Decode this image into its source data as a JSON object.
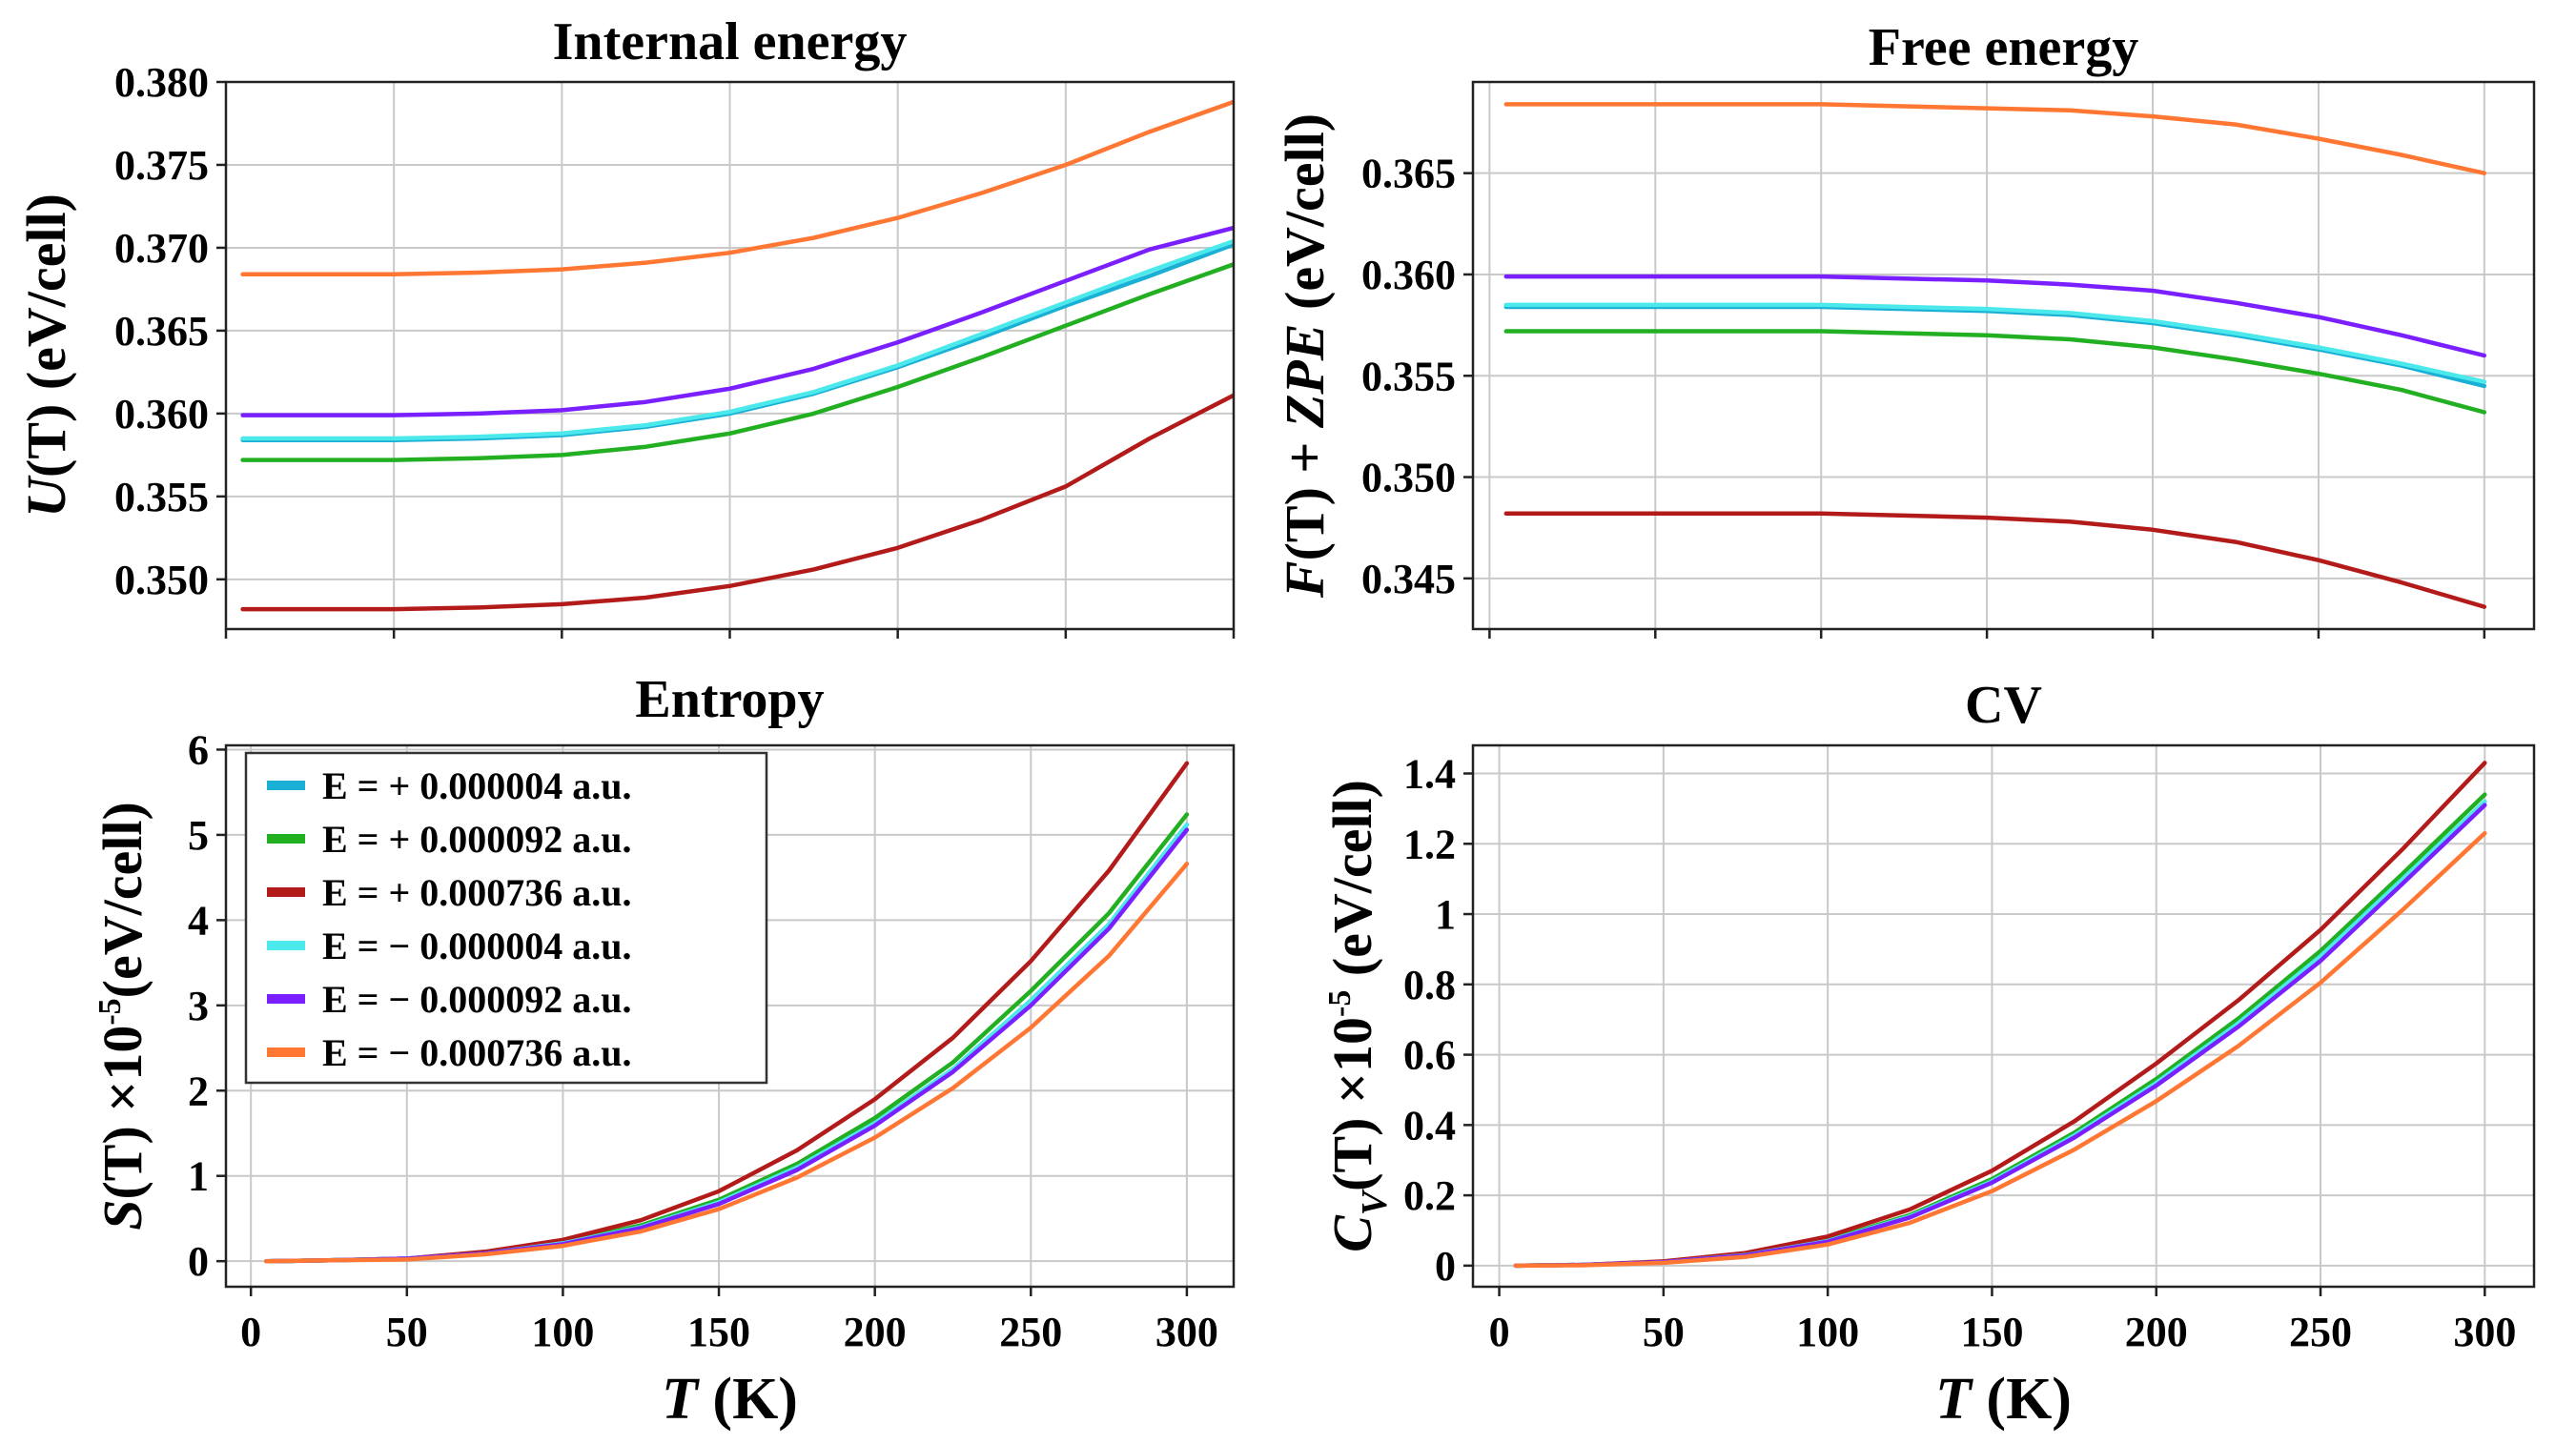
{
  "legend_entries": [
    {
      "label": "E = + 0.000004 a.u.",
      "color": "#1ab0d6"
    },
    {
      "label": "E = + 0.000092 a.u.",
      "color": "#22b022"
    },
    {
      "label": "E = + 0.000736 a.u.",
      "color": "#b31b1b"
    },
    {
      "label": "E = − 0.000004 a.u.",
      "color": "#4be8ec"
    },
    {
      "label": "E = − 0.000092 a.u.",
      "color": "#7a1fff"
    },
    {
      "label": "E = − 0.000736 a.u.",
      "color": "#ff7733"
    }
  ],
  "chart_data": [
    {
      "type": "line",
      "title": "Internal energy",
      "xlabel": "",
      "ylabel_parts": [
        "U",
        "(T) (eV/cell)"
      ],
      "xlim": [
        0,
        300
      ],
      "ylim": [
        0.347,
        0.38
      ],
      "xticks": [],
      "xtick_labels": [],
      "yticks": [
        0.35,
        0.355,
        0.36,
        0.365,
        0.37,
        0.375,
        0.38
      ],
      "ytick_labels": [
        "0.350",
        "0.355",
        "0.360",
        "0.365",
        "0.370",
        "0.375",
        "0.380"
      ],
      "grid": true,
      "x": [
        5,
        25,
        50,
        75,
        100,
        125,
        150,
        175,
        200,
        225,
        250,
        275,
        300
      ],
      "series": [
        {
          "name": "E = + 0.000004 a.u.",
          "color": "#1ab0d6",
          "values": [
            0.3584,
            0.3584,
            0.3584,
            0.3585,
            0.3587,
            0.3592,
            0.36,
            0.3612,
            0.3628,
            0.3646,
            0.3665,
            0.3683,
            0.3702
          ]
        },
        {
          "name": "E = + 0.000092 a.u.",
          "color": "#22b022",
          "values": [
            0.3572,
            0.3572,
            0.3572,
            0.3573,
            0.3575,
            0.358,
            0.3588,
            0.36,
            0.3616,
            0.3634,
            0.3653,
            0.3672,
            0.369
          ]
        },
        {
          "name": "E = + 0.000736 a.u.",
          "color": "#b31b1b",
          "values": [
            0.3482,
            0.3482,
            0.3482,
            0.3483,
            0.3485,
            0.3489,
            0.3496,
            0.3506,
            0.3519,
            0.3536,
            0.3556,
            0.3585,
            0.3611
          ]
        },
        {
          "name": "E = − 0.000004 a.u.",
          "color": "#4be8ec",
          "values": [
            0.3585,
            0.3585,
            0.3585,
            0.3586,
            0.3588,
            0.3593,
            0.3601,
            0.3613,
            0.3629,
            0.3648,
            0.3667,
            0.3686,
            0.3704
          ]
        },
        {
          "name": "E = − 0.000092 a.u.",
          "color": "#7a1fff",
          "values": [
            0.3599,
            0.3599,
            0.3599,
            0.36,
            0.3602,
            0.3607,
            0.3615,
            0.3627,
            0.3643,
            0.3661,
            0.368,
            0.3699,
            0.3712
          ]
        },
        {
          "name": "E = − 0.000736 a.u.",
          "color": "#ff7733",
          "values": [
            0.3684,
            0.3684,
            0.3684,
            0.3685,
            0.3687,
            0.3691,
            0.3697,
            0.3706,
            0.3718,
            0.3733,
            0.375,
            0.377,
            0.3788
          ]
        }
      ]
    },
    {
      "type": "line",
      "title": "Free energy",
      "xlabel": "",
      "ylabel_parts": [
        "F",
        "(T) + ",
        "ZPE",
        " (eV/cell)"
      ],
      "xlim": [
        -5,
        315
      ],
      "ylim": [
        0.3425,
        0.3695
      ],
      "xticks": [],
      "xtick_labels": [],
      "yticks": [
        0.345,
        0.35,
        0.355,
        0.36,
        0.365
      ],
      "ytick_labels": [
        "0.345",
        "0.350",
        "0.355",
        "0.360",
        "0.365"
      ],
      "grid": true,
      "x": [
        5,
        25,
        50,
        75,
        100,
        125,
        150,
        175,
        200,
        225,
        250,
        275,
        300
      ],
      "series": [
        {
          "name": "E = + 0.000004 a.u.",
          "color": "#1ab0d6",
          "values": [
            0.3584,
            0.3584,
            0.3584,
            0.3584,
            0.3584,
            0.3583,
            0.3582,
            0.358,
            0.3576,
            0.357,
            0.3563,
            0.3555,
            0.3545
          ]
        },
        {
          "name": "E = + 0.000092 a.u.",
          "color": "#22b022",
          "values": [
            0.3572,
            0.3572,
            0.3572,
            0.3572,
            0.3572,
            0.3571,
            0.357,
            0.3568,
            0.3564,
            0.3558,
            0.3551,
            0.3543,
            0.3532
          ]
        },
        {
          "name": "E = + 0.000736 a.u.",
          "color": "#b31b1b",
          "values": [
            0.3482,
            0.3482,
            0.3482,
            0.3482,
            0.3482,
            0.3481,
            0.348,
            0.3478,
            0.3474,
            0.3468,
            0.3459,
            0.3448,
            0.3436
          ]
        },
        {
          "name": "E = − 0.000004 a.u.",
          "color": "#4be8ec",
          "values": [
            0.3585,
            0.3585,
            0.3585,
            0.3585,
            0.3585,
            0.3584,
            0.3583,
            0.3581,
            0.3577,
            0.3571,
            0.3564,
            0.3556,
            0.3547
          ]
        },
        {
          "name": "E = − 0.000092 a.u.",
          "color": "#7a1fff",
          "values": [
            0.3599,
            0.3599,
            0.3599,
            0.3599,
            0.3599,
            0.3598,
            0.3597,
            0.3595,
            0.3592,
            0.3586,
            0.3579,
            0.357,
            0.356
          ]
        },
        {
          "name": "E = − 0.000736 a.u.",
          "color": "#ff7733",
          "values": [
            0.3684,
            0.3684,
            0.3684,
            0.3684,
            0.3684,
            0.3683,
            0.3682,
            0.3681,
            0.3678,
            0.3674,
            0.3667,
            0.3659,
            0.365
          ]
        }
      ]
    },
    {
      "type": "line",
      "title": "Entropy",
      "xlabel_parts": [
        "T",
        " (K)"
      ],
      "ylabel_parts": [
        "S",
        "(T) ×10",
        "-5",
        "(eV/cell)"
      ],
      "xlim": [
        -8,
        315
      ],
      "ylim": [
        -0.3,
        6.05
      ],
      "xticks": [
        0,
        50,
        100,
        150,
        200,
        250,
        300
      ],
      "xtick_labels": [
        "0",
        "50",
        "100",
        "150",
        "200",
        "250",
        "300"
      ],
      "yticks": [
        0,
        1,
        2,
        3,
        4,
        5,
        6
      ],
      "ytick_labels": [
        "0",
        "1",
        "2",
        "3",
        "4",
        "5",
        "6"
      ],
      "grid": true,
      "legend": "upper-left",
      "x": [
        5,
        25,
        50,
        75,
        100,
        125,
        150,
        175,
        200,
        225,
        250,
        275,
        300
      ],
      "series": [
        {
          "name": "E = + 0.000004 a.u.",
          "color": "#1ab0d6",
          "values": [
            0.0,
            0.01,
            0.03,
            0.09,
            0.21,
            0.4,
            0.69,
            1.1,
            1.62,
            2.25,
            3.06,
            3.95,
            5.12
          ]
        },
        {
          "name": "E = + 0.000092 a.u.",
          "color": "#22b022",
          "values": [
            0.0,
            0.01,
            0.03,
            0.1,
            0.22,
            0.42,
            0.72,
            1.14,
            1.68,
            2.33,
            3.17,
            4.08,
            5.24
          ]
        },
        {
          "name": "E = + 0.000736 a.u.",
          "color": "#b31b1b",
          "values": [
            0.0,
            0.01,
            0.03,
            0.11,
            0.25,
            0.48,
            0.82,
            1.3,
            1.9,
            2.62,
            3.52,
            4.58,
            5.84
          ]
        },
        {
          "name": "E = − 0.000004 a.u.",
          "color": "#4be8ec",
          "values": [
            0.0,
            0.01,
            0.03,
            0.09,
            0.21,
            0.4,
            0.69,
            1.1,
            1.62,
            2.25,
            3.06,
            3.95,
            5.12
          ]
        },
        {
          "name": "E = − 0.000092 a.u.",
          "color": "#7a1fff",
          "values": [
            0.0,
            0.01,
            0.03,
            0.09,
            0.2,
            0.39,
            0.67,
            1.07,
            1.59,
            2.22,
            3.0,
            3.9,
            5.06
          ]
        },
        {
          "name": "E = − 0.000736 a.u.",
          "color": "#ff7733",
          "values": [
            0.0,
            0.01,
            0.02,
            0.08,
            0.18,
            0.35,
            0.61,
            0.98,
            1.45,
            2.03,
            2.74,
            3.58,
            4.66
          ]
        }
      ]
    },
    {
      "type": "line",
      "title": "CV",
      "xlabel_parts": [
        "T",
        " (K)"
      ],
      "ylabel_parts": [
        "C",
        "V",
        "(T) ×10",
        "-5",
        " (eV/cell)"
      ],
      "xlim": [
        -8,
        315
      ],
      "ylim": [
        -0.06,
        1.48
      ],
      "xticks": [
        0,
        50,
        100,
        150,
        200,
        250,
        300
      ],
      "xtick_labels": [
        "0",
        "50",
        "100",
        "150",
        "200",
        "250",
        "300"
      ],
      "yticks": [
        0,
        0.2,
        0.4,
        0.6,
        0.8,
        1.0,
        1.2,
        1.4
      ],
      "ytick_labels": [
        "0",
        "0.2",
        "0.4",
        "0.6",
        "0.8",
        "1",
        "1.2",
        "1.4"
      ],
      "grid": true,
      "x": [
        5,
        25,
        50,
        75,
        100,
        125,
        150,
        175,
        200,
        225,
        250,
        275,
        300
      ],
      "series": [
        {
          "name": "E = + 0.000004 a.u.",
          "color": "#1ab0d6",
          "values": [
            0.0,
            0.002,
            0.01,
            0.03,
            0.07,
            0.14,
            0.24,
            0.37,
            0.52,
            0.69,
            0.88,
            1.1,
            1.32
          ]
        },
        {
          "name": "E = + 0.000092 a.u.",
          "color": "#22b022",
          "values": [
            0.0,
            0.002,
            0.01,
            0.031,
            0.072,
            0.144,
            0.246,
            0.378,
            0.531,
            0.703,
            0.895,
            1.115,
            1.34
          ]
        },
        {
          "name": "E = + 0.000736 a.u.",
          "color": "#b31b1b",
          "values": [
            0.0,
            0.002,
            0.012,
            0.036,
            0.083,
            0.16,
            0.27,
            0.41,
            0.575,
            0.755,
            0.955,
            1.185,
            1.43
          ]
        },
        {
          "name": "E = − 0.000004 a.u.",
          "color": "#4be8ec",
          "values": [
            0.0,
            0.002,
            0.01,
            0.03,
            0.07,
            0.14,
            0.24,
            0.37,
            0.52,
            0.69,
            0.88,
            1.1,
            1.32
          ]
        },
        {
          "name": "E = − 0.000092 a.u.",
          "color": "#7a1fff",
          "values": [
            0.0,
            0.002,
            0.01,
            0.029,
            0.068,
            0.137,
            0.236,
            0.364,
            0.512,
            0.68,
            0.867,
            1.087,
            1.31
          ]
        },
        {
          "name": "E = − 0.000736 a.u.",
          "color": "#ff7733",
          "values": [
            0.0,
            0.001,
            0.008,
            0.025,
            0.06,
            0.122,
            0.212,
            0.33,
            0.468,
            0.625,
            0.805,
            1.012,
            1.23
          ]
        }
      ]
    }
  ]
}
